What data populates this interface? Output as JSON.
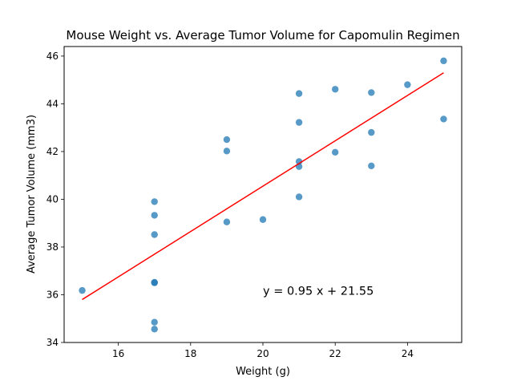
{
  "chart_data": {
    "type": "scatter",
    "title": "Mouse Weight vs. Average Tumor Volume for Capomulin Regimen",
    "xlabel": "Weight (g)",
    "ylabel": "Average Tumor Volume (mm3)",
    "xlim": [
      14.5,
      25.5
    ],
    "ylim": [
      34,
      46.4
    ],
    "xticks": [
      16,
      18,
      20,
      22,
      24
    ],
    "yticks": [
      34,
      36,
      38,
      40,
      42,
      44,
      46
    ],
    "grid": false,
    "points": [
      {
        "x": 15,
        "y": 36.18
      },
      {
        "x": 17,
        "y": 39.9
      },
      {
        "x": 17,
        "y": 39.33
      },
      {
        "x": 17,
        "y": 38.52
      },
      {
        "x": 17,
        "y": 36.52
      },
      {
        "x": 17,
        "y": 36.5
      },
      {
        "x": 17,
        "y": 34.85
      },
      {
        "x": 17,
        "y": 34.56
      },
      {
        "x": 19,
        "y": 42.5
      },
      {
        "x": 19,
        "y": 42.02
      },
      {
        "x": 19,
        "y": 39.05
      },
      {
        "x": 20,
        "y": 39.15
      },
      {
        "x": 21,
        "y": 44.43
      },
      {
        "x": 21,
        "y": 43.22
      },
      {
        "x": 21,
        "y": 41.58
      },
      {
        "x": 21,
        "y": 41.37
      },
      {
        "x": 21,
        "y": 40.1
      },
      {
        "x": 22,
        "y": 44.61
      },
      {
        "x": 22,
        "y": 41.97
      },
      {
        "x": 23,
        "y": 44.47
      },
      {
        "x": 23,
        "y": 42.8
      },
      {
        "x": 23,
        "y": 41.4
      },
      {
        "x": 24,
        "y": 44.8
      },
      {
        "x": 25,
        "y": 45.8
      },
      {
        "x": 25,
        "y": 43.36
      }
    ],
    "regression": {
      "slope": 0.95,
      "intercept": 21.55,
      "x_range": [
        15,
        25
      ]
    },
    "annotation": {
      "text": "y = 0.95 x + 21.55",
      "x": 20,
      "y": 36
    },
    "colors": {
      "points": "#1f77b4",
      "line": "#ff0000",
      "axes": "#000000"
    }
  }
}
